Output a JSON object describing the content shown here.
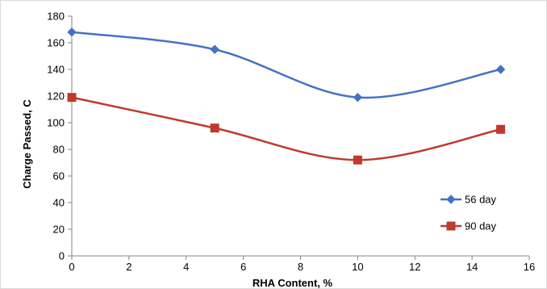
{
  "chart_data": {
    "type": "line",
    "smooth": true,
    "title": "",
    "xlabel": "RHA Content, %",
    "ylabel": "Charge Passed, C",
    "xlim": [
      0,
      16
    ],
    "ylim": [
      0,
      180
    ],
    "xticks": [
      0,
      2,
      4,
      6,
      8,
      10,
      12,
      14,
      16
    ],
    "yticks": [
      0,
      20,
      40,
      60,
      80,
      100,
      120,
      140,
      160,
      180
    ],
    "grid": false,
    "legend_position": "right",
    "series": [
      {
        "name": "56 day",
        "color": "#4472c4",
        "marker": "diamond",
        "x": [
          0,
          5,
          10,
          15
        ],
        "y": [
          168,
          155,
          119,
          140
        ]
      },
      {
        "name": "90 day",
        "color": "#c0392b",
        "marker": "square",
        "x": [
          0,
          5,
          10,
          15
        ],
        "y": [
          119,
          96,
          72,
          95
        ]
      }
    ]
  }
}
